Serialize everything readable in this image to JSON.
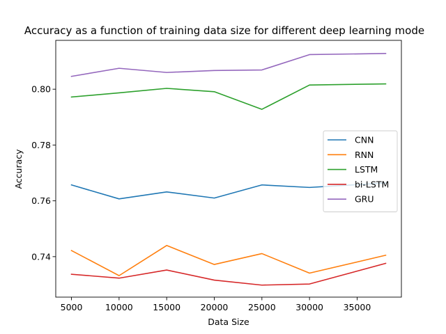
{
  "chart_data": {
    "type": "line",
    "title": "Accuracy as a function of training data size for different deep learning mode",
    "xlabel": "Data Size",
    "ylabel": "Accuracy",
    "xlim": [
      3350,
      39650
    ],
    "ylim": [
      0.7255,
      0.8175
    ],
    "x": [
      5000,
      10000,
      15000,
      20000,
      25000,
      30000,
      38000
    ],
    "x_ticks": [
      5000,
      10000,
      15000,
      20000,
      25000,
      30000,
      35000
    ],
    "y_ticks": [
      0.74,
      0.76,
      0.78,
      0.8
    ],
    "y_tick_labels": [
      "0.74",
      "0.76",
      "0.78",
      "0.80"
    ],
    "grid": false,
    "legend_position": "center-right",
    "series": [
      {
        "name": "CNN",
        "color": "#1f77b4",
        "values": [
          0.7657,
          0.7607,
          0.7632,
          0.761,
          0.7657,
          0.7648,
          0.7664
        ]
      },
      {
        "name": "RNN",
        "color": "#ff7f0e",
        "values": [
          0.7422,
          0.7332,
          0.744,
          0.7372,
          0.7411,
          0.7341,
          0.7405
        ]
      },
      {
        "name": "LSTM",
        "color": "#2ca02c",
        "values": [
          0.7972,
          0.7987,
          0.8003,
          0.7991,
          0.7928,
          0.8015,
          0.8019
        ]
      },
      {
        "name": "bi-LSTM",
        "color": "#d62728",
        "values": [
          0.7337,
          0.7323,
          0.7352,
          0.7316,
          0.7298,
          0.7302,
          0.7376
        ]
      },
      {
        "name": "GRU",
        "color": "#9467bd",
        "values": [
          0.8046,
          0.8075,
          0.806,
          0.8067,
          0.8069,
          0.8124,
          0.8128
        ]
      }
    ]
  }
}
